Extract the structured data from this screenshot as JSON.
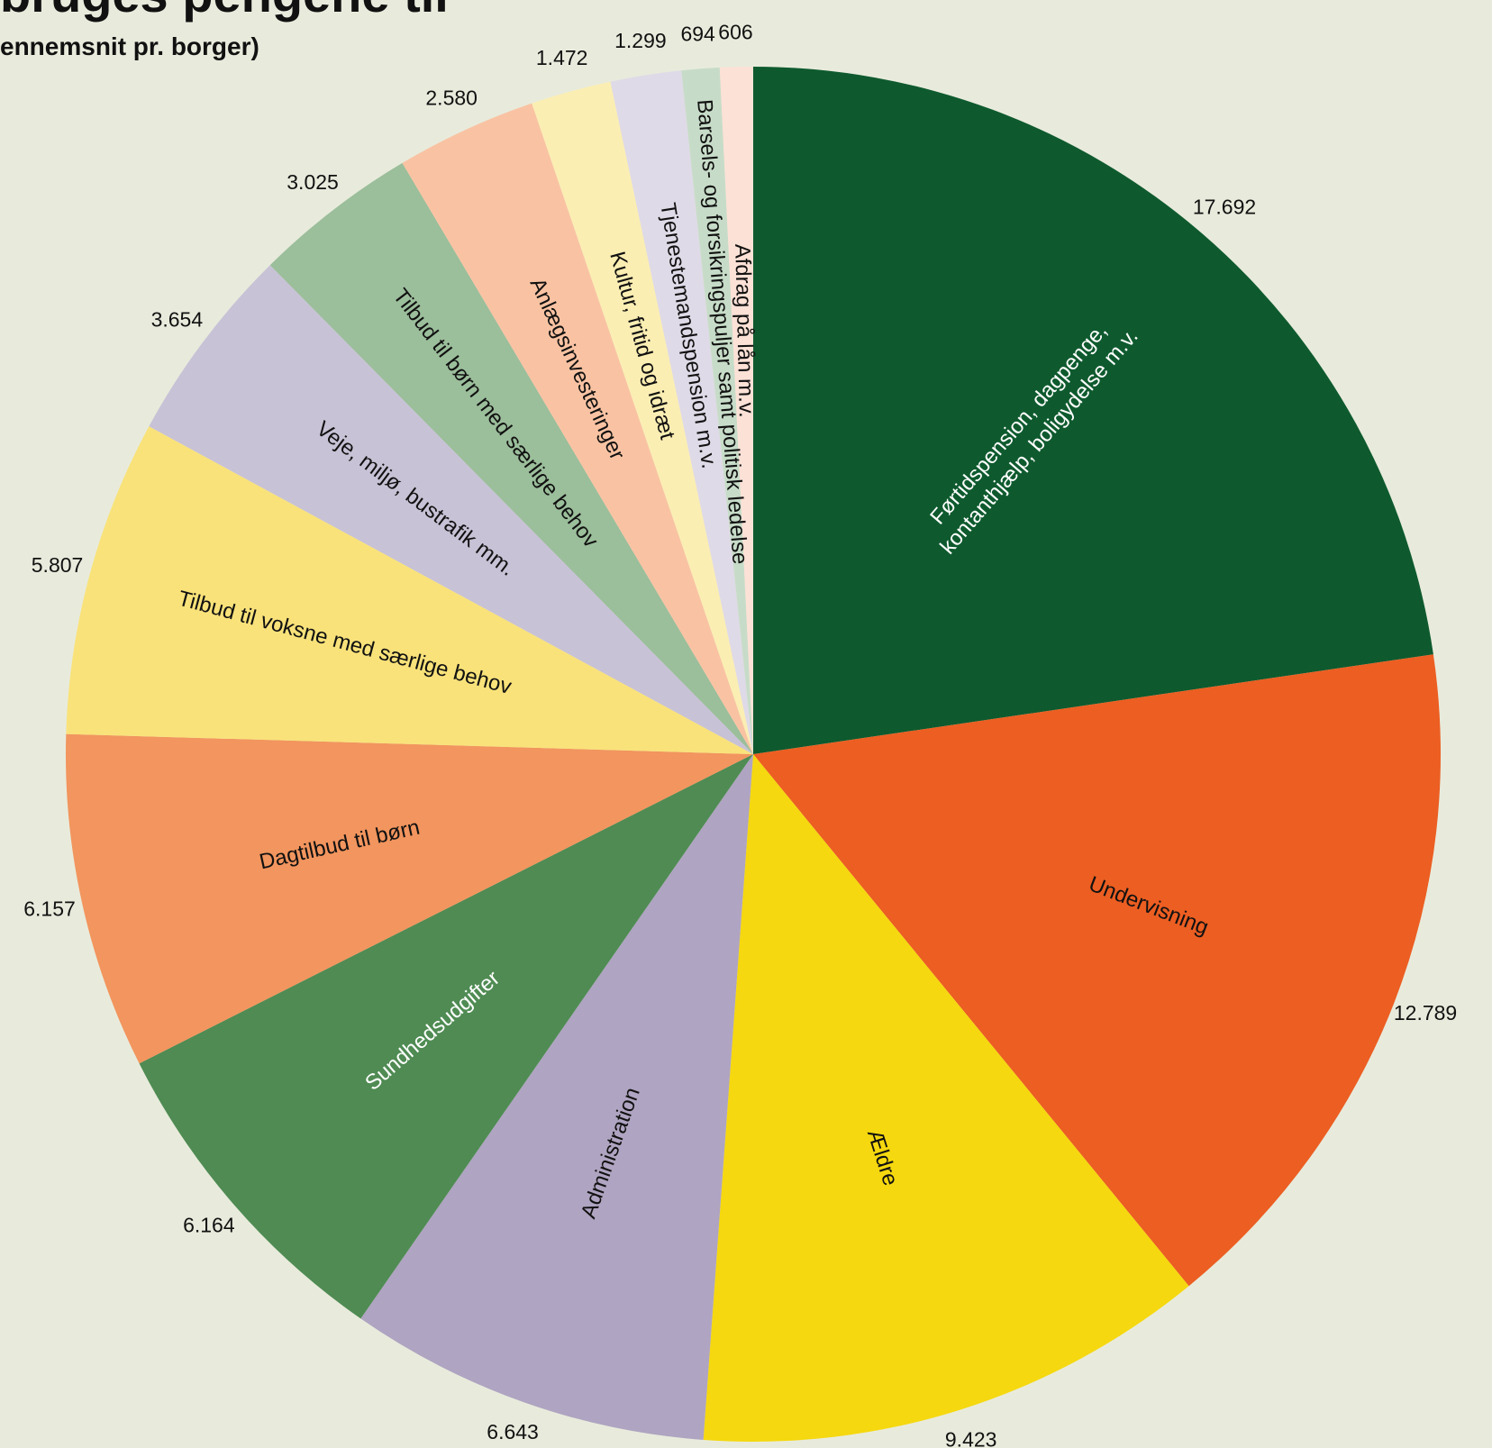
{
  "title": "bruges pengene til",
  "subtitle": "ennemsnit pr. borger)",
  "chart_data": {
    "type": "pie",
    "start_angle_deg": 90,
    "direction": "clockwise",
    "slices": [
      {
        "label": "Førtidspension, dagpenge, kontanthjælp, boligydelse m.v.",
        "label_lines": [
          "Førtidspension, dagpenge,",
          "kontanthjælp, boligydelse m.v."
        ],
        "value": 17692,
        "value_label": "17.692",
        "color": "#0E5A2E",
        "text_color": "#FFFFFF"
      },
      {
        "label": "Undervisning",
        "label_lines": [
          "Undervisning"
        ],
        "value": 12789,
        "value_label": "12.789",
        "color": "#EC5E22",
        "text_color": "#111111"
      },
      {
        "label": "Ældre",
        "label_lines": [
          "Ældre"
        ],
        "value": 9423,
        "value_label": "9.423",
        "color": "#F5D80F",
        "text_color": "#111111"
      },
      {
        "label": "Administration",
        "label_lines": [
          "Administration"
        ],
        "value": 6643,
        "value_label": "6.643",
        "color": "#AFA4C1",
        "text_color": "#111111"
      },
      {
        "label": "Sundhedsudgifter",
        "label_lines": [
          "Sundhedsudgifter"
        ],
        "value": 6164,
        "value_label": "6.164",
        "color": "#4F8B53",
        "text_color": "#FFFFFF"
      },
      {
        "label": "Dagtilbud til børn",
        "label_lines": [
          "Dagtilbud til børn"
        ],
        "value": 6157,
        "value_label": "6.157",
        "color": "#F2955E",
        "text_color": "#111111"
      },
      {
        "label": "Tilbud til voksne med særlige behov",
        "label_lines": [
          "Tilbud til voksne med særlige behov"
        ],
        "value": 5807,
        "value_label": "5.807",
        "color": "#F9E27A",
        "text_color": "#111111"
      },
      {
        "label": "Veje, miljø, bustrafik mm.",
        "label_lines": [
          "Veje, miljø, bustrafik mm."
        ],
        "value": 3654,
        "value_label": "3.654",
        "color": "#C8C2D6",
        "text_color": "#111111"
      },
      {
        "label": "Tilbud til børn med særlige behov",
        "label_lines": [
          "Tilbud til børn med særlige behov"
        ],
        "value": 3025,
        "value_label": "3.025",
        "color": "#9BBE9B",
        "text_color": "#111111"
      },
      {
        "label": "Anlægsinvesteringer",
        "label_lines": [
          "Anlægsinvesteringer"
        ],
        "value": 2580,
        "value_label": "2.580",
        "color": "#F9C3A3",
        "text_color": "#111111"
      },
      {
        "label": "Kultur, fritid og idræt",
        "label_lines": [
          "Kultur, fritid og idræt"
        ],
        "value": 1472,
        "value_label": "1.472",
        "color": "#FBEEB3",
        "text_color": "#111111"
      },
      {
        "label": "Tjenestemandspension m.v.",
        "label_lines": [
          "Tjenestemandspension m.v."
        ],
        "value": 1299,
        "value_label": "1.299",
        "color": "#DFDAE7",
        "text_color": "#111111"
      },
      {
        "label": "Barsels- og forsikringspuljer samt politisk ledelse",
        "label_lines": [
          "Barsels- og forsikringspuljer samt politisk ledelse"
        ],
        "value": 694,
        "value_label": "694",
        "color": "#C7DCC8",
        "text_color": "#111111"
      },
      {
        "label": "Afdrag på lån m.v.",
        "label_lines": [
          "Afdrag på lån m.v."
        ],
        "value": 606,
        "value_label": "606",
        "color": "#FCE1D6",
        "text_color": "#111111"
      }
    ]
  }
}
